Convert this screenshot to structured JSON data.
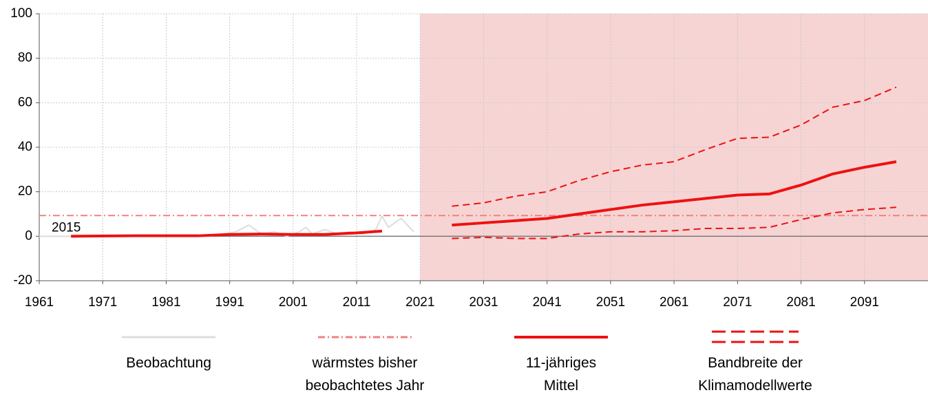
{
  "chart_data": {
    "type": "line",
    "xlim": [
      1961,
      2101
    ],
    "xticks": [
      1961,
      1971,
      1981,
      1991,
      2001,
      2011,
      2021,
      2031,
      2041,
      2051,
      2061,
      2071,
      2081,
      2091
    ],
    "ylim": [
      -20,
      100
    ],
    "yticks": [
      -20,
      0,
      20,
      40,
      60,
      80,
      100
    ],
    "grid": true,
    "projection_start": 2021,
    "projection_color": "#f7d4d4",
    "reference": {
      "name": "wärmstes bisher\nbeobachtetes Jahr",
      "value": 9.3,
      "label": "2015",
      "color": "#f08080"
    },
    "series": [
      {
        "name": "Beobachtung",
        "color": "#dddddd",
        "style": "solid",
        "x": [
          1961,
          1970,
          1980,
          1988,
          1990,
          1992,
          1994,
          1996,
          1998,
          2000,
          2002,
          2003,
          2004,
          2006,
          2008,
          2010,
          2012,
          2014,
          2015,
          2016,
          2018,
          2019,
          2020
        ],
        "values": [
          0,
          0,
          0,
          0,
          1,
          2,
          5,
          1,
          2,
          0,
          2,
          4,
          1,
          3,
          1,
          2,
          1,
          3,
          9,
          4,
          8,
          5,
          2
        ]
      },
      {
        "name": "11-jähriges\nMittel",
        "color": "#ee1111",
        "style": "solid",
        "x": [
          1966,
          1976,
          1986,
          1991,
          1996,
          2001,
          2006,
          2011,
          2015,
          2021,
          2026,
          2031,
          2036,
          2041,
          2046,
          2051,
          2056,
          2061,
          2066,
          2071,
          2076,
          2081,
          2086,
          2091,
          2096
        ],
        "values": [
          0,
          0.2,
          0.2,
          0.8,
          1,
          0.8,
          0.8,
          1.5,
          2.3,
          null,
          5,
          6,
          7,
          8,
          10,
          12,
          14,
          15.5,
          17,
          18.5,
          19,
          23,
          28,
          31,
          33.5
        ]
      },
      {
        "name": "Bandbreite der\nKlimamodellwerte",
        "color": "#ee1111",
        "style": "dashed",
        "x": [
          2026,
          2031,
          2036,
          2041,
          2046,
          2051,
          2056,
          2061,
          2066,
          2071,
          2076,
          2081,
          2086,
          2091,
          2096
        ],
        "values": [
          13.5,
          15,
          18,
          20,
          25,
          29,
          32,
          33.5,
          39,
          44,
          44.5,
          50,
          58,
          61,
          67
        ],
        "lower_values": [
          -1,
          -0.5,
          -1,
          -1,
          1,
          2,
          2,
          2.5,
          3.5,
          3.5,
          4,
          7.5,
          10.5,
          12,
          13
        ]
      }
    ]
  }
}
